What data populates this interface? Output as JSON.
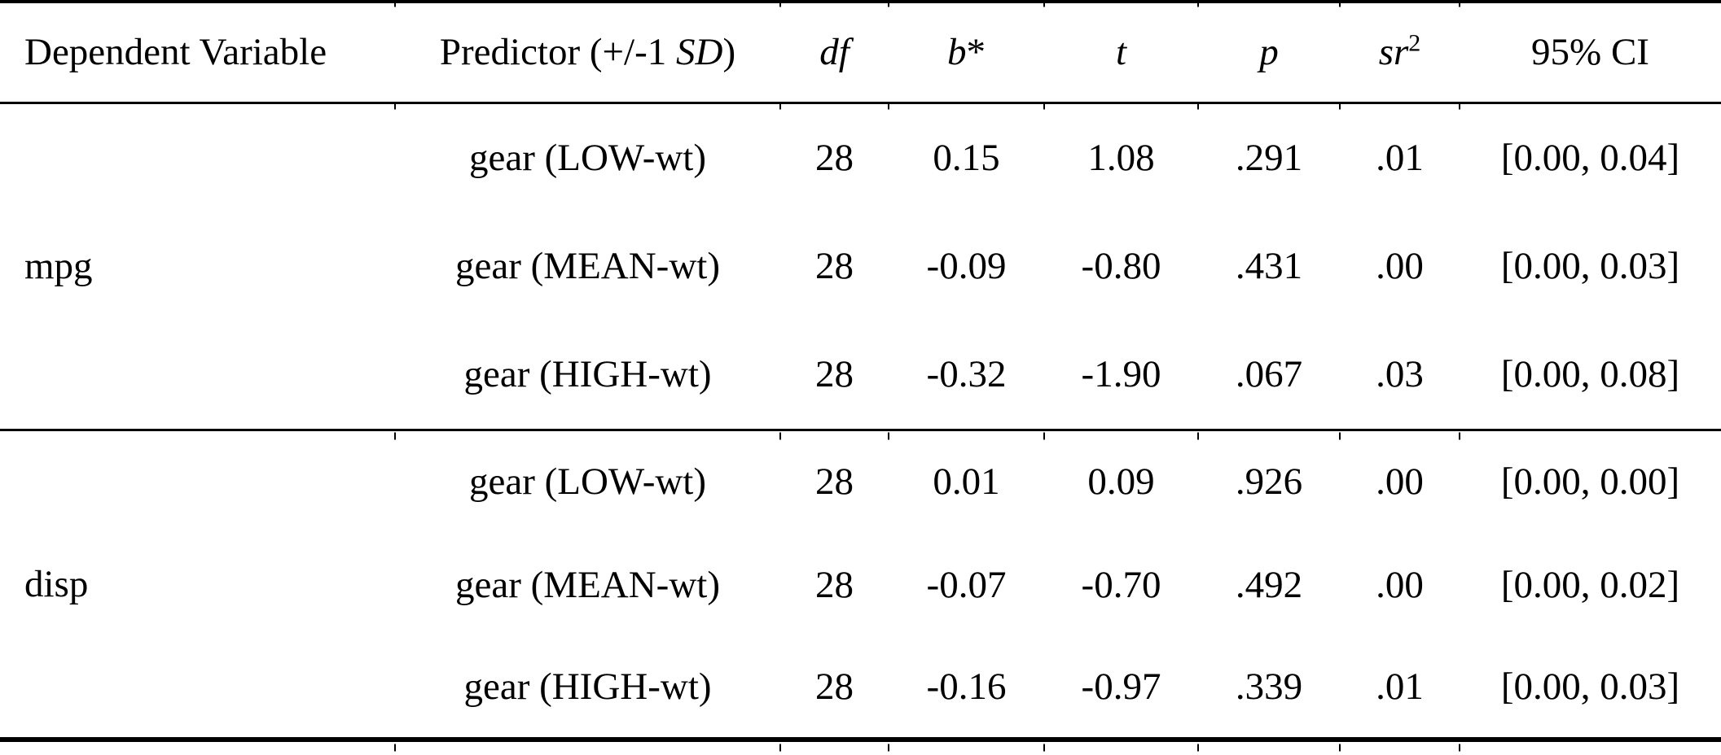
{
  "table": {
    "colors": {
      "text": "#000000",
      "background": "#ffffff",
      "rule": "#000000"
    },
    "headers": {
      "dv": "Dependent Variable",
      "predictor_pre": "Predictor (+/-1 ",
      "predictor_it": "SD",
      "predictor_post": ")",
      "df": "df",
      "b_it": "b",
      "b_post": "*",
      "t": "t",
      "p": "p",
      "sr_it": "sr",
      "sr_sup": "2",
      "ci": "95% CI"
    },
    "groups": [
      {
        "dv": "mpg",
        "rows": [
          {
            "predictor": "gear (LOW-wt)",
            "df": "28",
            "b": "0.15",
            "t": "1.08",
            "p": ".291",
            "sr2": ".01",
            "ci": "[0.00, 0.04]"
          },
          {
            "predictor": "gear (MEAN-wt)",
            "df": "28",
            "b": "-0.09",
            "t": "-0.80",
            "p": ".431",
            "sr2": ".00",
            "ci": "[0.00, 0.03]"
          },
          {
            "predictor": "gear (HIGH-wt)",
            "df": "28",
            "b": "-0.32",
            "t": "-1.90",
            "p": ".067",
            "sr2": ".03",
            "ci": "[0.00, 0.08]"
          }
        ]
      },
      {
        "dv": "disp",
        "rows": [
          {
            "predictor": "gear (LOW-wt)",
            "df": "28",
            "b": "0.01",
            "t": "0.09",
            "p": ".926",
            "sr2": ".00",
            "ci": "[0.00, 0.00]"
          },
          {
            "predictor": "gear (MEAN-wt)",
            "df": "28",
            "b": "-0.07",
            "t": "-0.70",
            "p": ".492",
            "sr2": ".00",
            "ci": "[0.00, 0.02]"
          },
          {
            "predictor": "gear (HIGH-wt)",
            "df": "28",
            "b": "-0.16",
            "t": "-0.97",
            "p": ".339",
            "sr2": ".01",
            "ci": "[0.00, 0.03]"
          }
        ]
      }
    ]
  }
}
